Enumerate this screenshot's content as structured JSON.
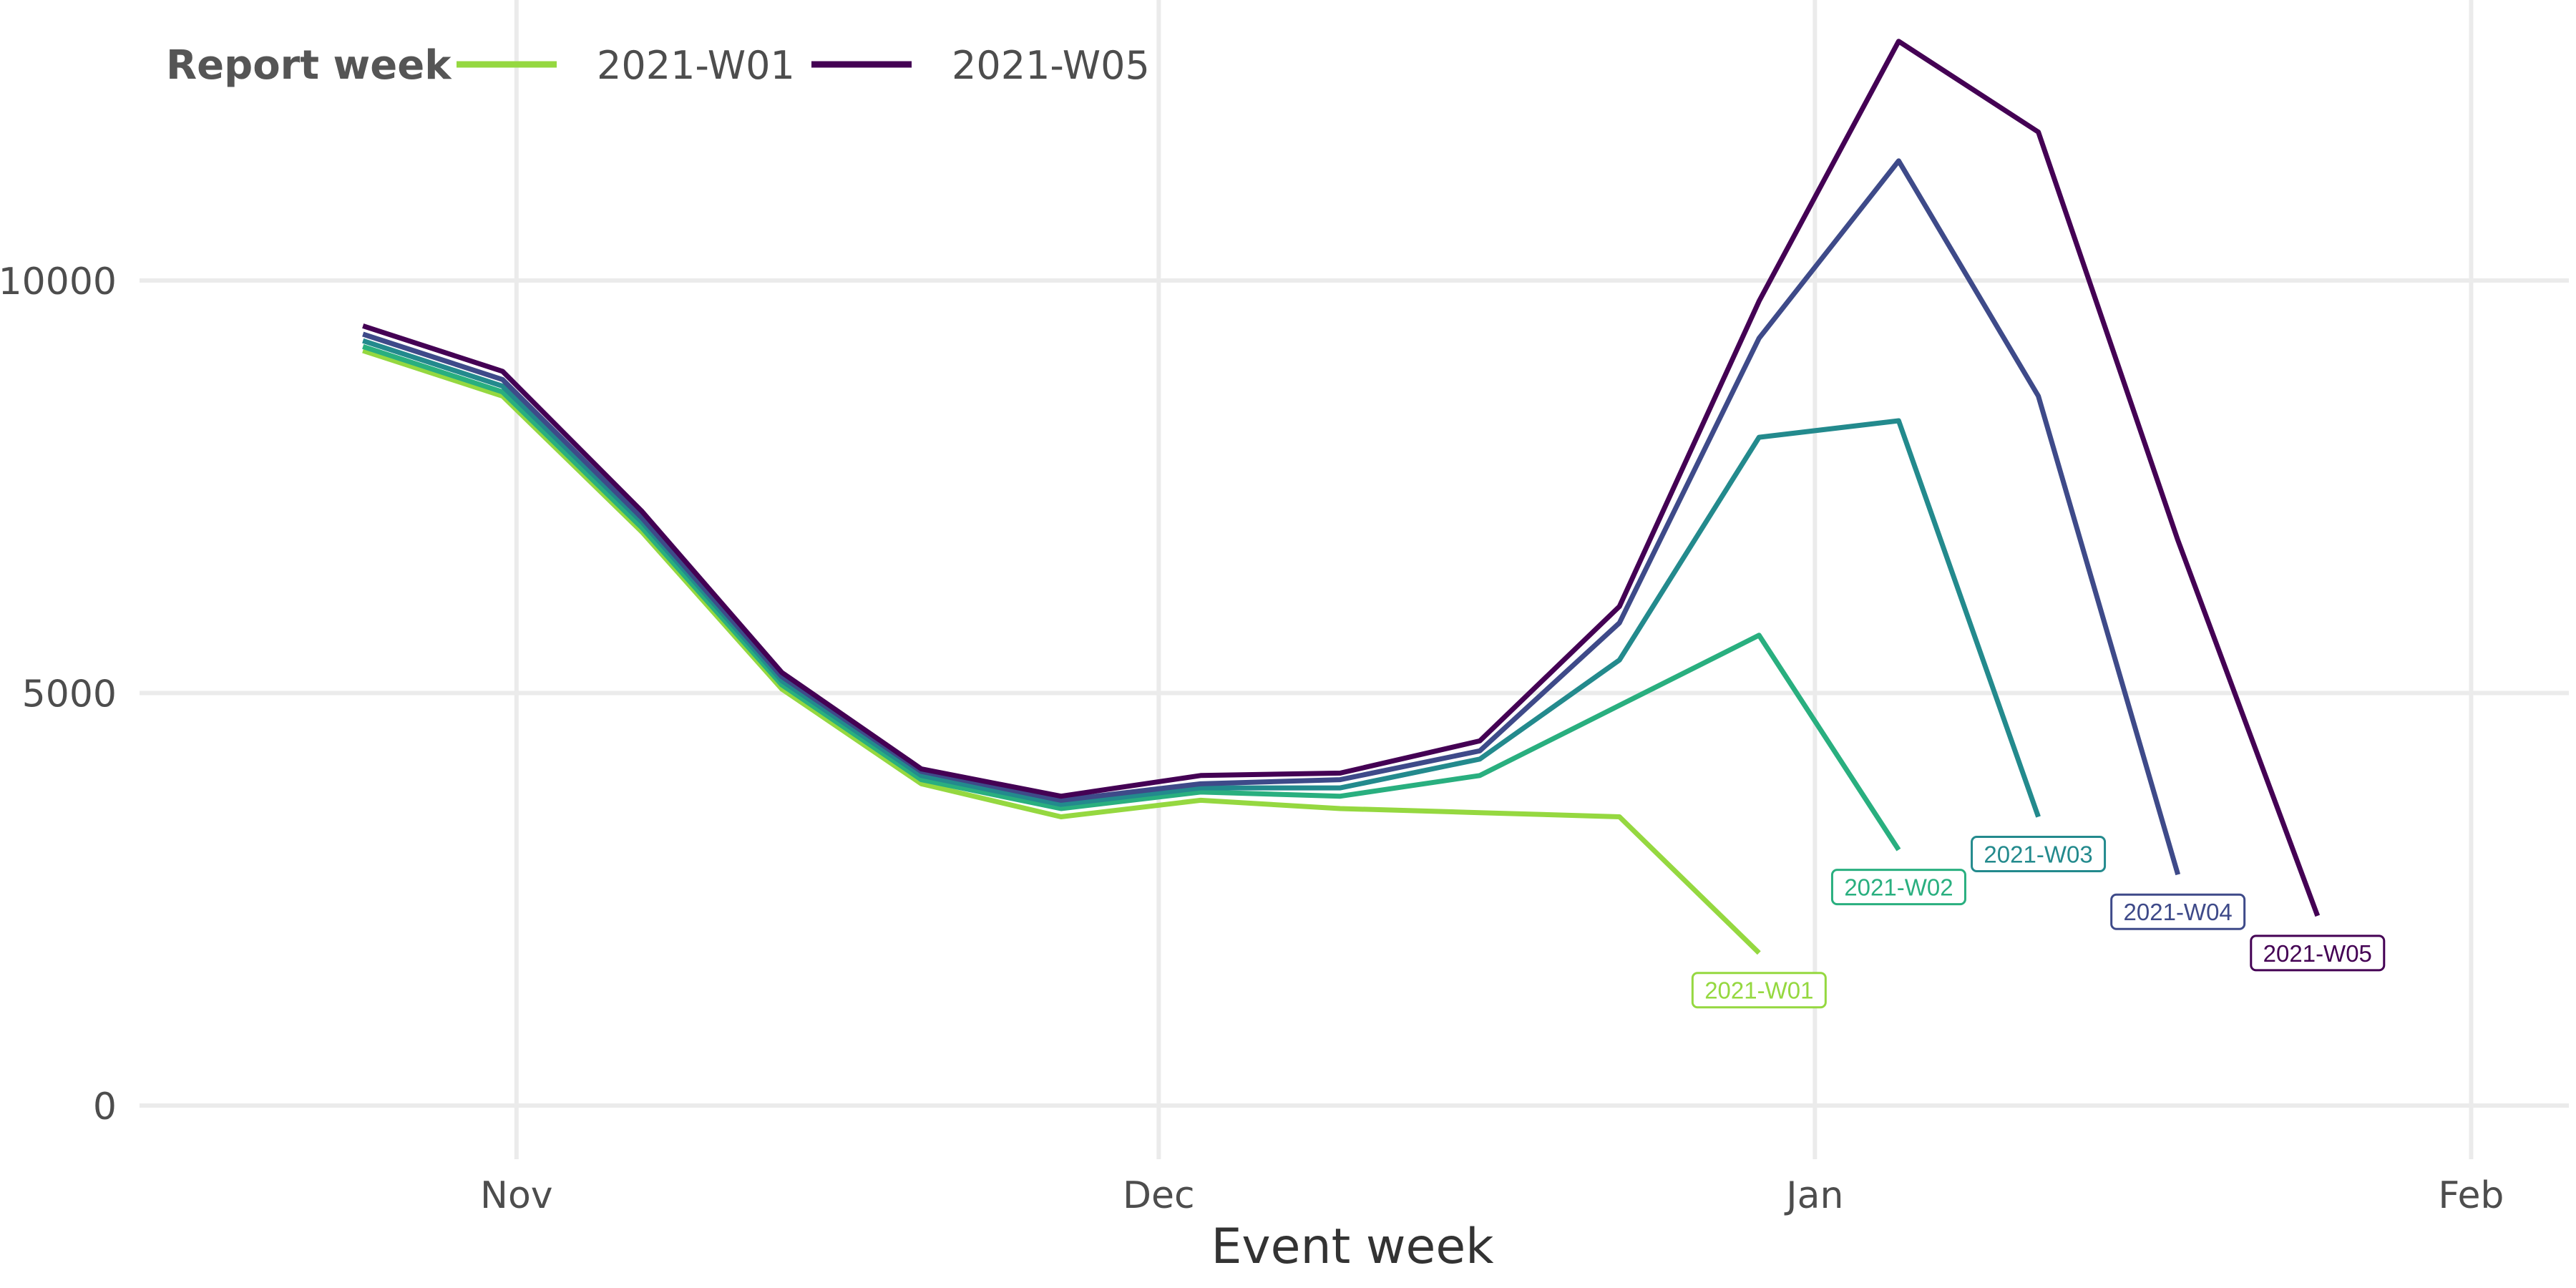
{
  "chart_data": {
    "type": "line",
    "title": "",
    "xlabel": "Event week",
    "ylabel": "",
    "x_tick_labels": [
      "Nov",
      "Dec",
      "Jan",
      "Feb"
    ],
    "y_tick_labels": [
      "0",
      "5000",
      "10000"
    ],
    "y_ticks": [
      0,
      5000,
      10000
    ],
    "ylim": [
      -650,
      13400
    ],
    "x_ticks_week_index": [
      1.1,
      5.7,
      10.4,
      15.1
    ],
    "xlim_week_index": [
      -1.6,
      15.8
    ],
    "legend": {
      "title": "Report week",
      "position": "top-left",
      "entries": [
        {
          "label": "2021-W01",
          "color": "#95d840"
        },
        {
          "label": "2021-W05",
          "color": "#440154"
        }
      ]
    },
    "x_week_index": [
      0,
      1,
      2,
      3,
      4,
      5,
      6,
      7,
      8,
      9,
      10,
      11,
      12,
      13,
      14,
      15
    ],
    "series": [
      {
        "name": "2021-W01",
        "color": "#95d840",
        "end_label": "2021-W01",
        "values": [
          9150,
          8600,
          6950,
          5050,
          3900,
          3500,
          3700,
          3600,
          3550,
          3500,
          1850
        ]
      },
      {
        "name": "2021-W02",
        "color": "#29af7f",
        "end_label": "2021-W02",
        "values": [
          9200,
          8650,
          7000,
          5100,
          3950,
          3600,
          3800,
          3750,
          4000,
          4850,
          5700,
          3100
        ]
      },
      {
        "name": "2021-W03",
        "color": "#238a8d",
        "end_label": "2021-W03",
        "values": [
          9270,
          8720,
          7070,
          5150,
          4000,
          3650,
          3850,
          3850,
          4200,
          5400,
          8100,
          8300,
          3500
        ]
      },
      {
        "name": "2021-W04",
        "color": "#3e4a89",
        "end_label": "2021-W04",
        "values": [
          9350,
          8800,
          7120,
          5200,
          4050,
          3700,
          3900,
          3950,
          4300,
          5850,
          9300,
          11450,
          8600,
          2800
        ]
      },
      {
        "name": "2021-W05",
        "color": "#440154",
        "end_label": "2021-W05",
        "values": [
          9450,
          8900,
          7200,
          5250,
          4080,
          3750,
          4000,
          4030,
          4420,
          6050,
          9750,
          12900,
          11800,
          6850,
          2300
        ]
      }
    ]
  }
}
